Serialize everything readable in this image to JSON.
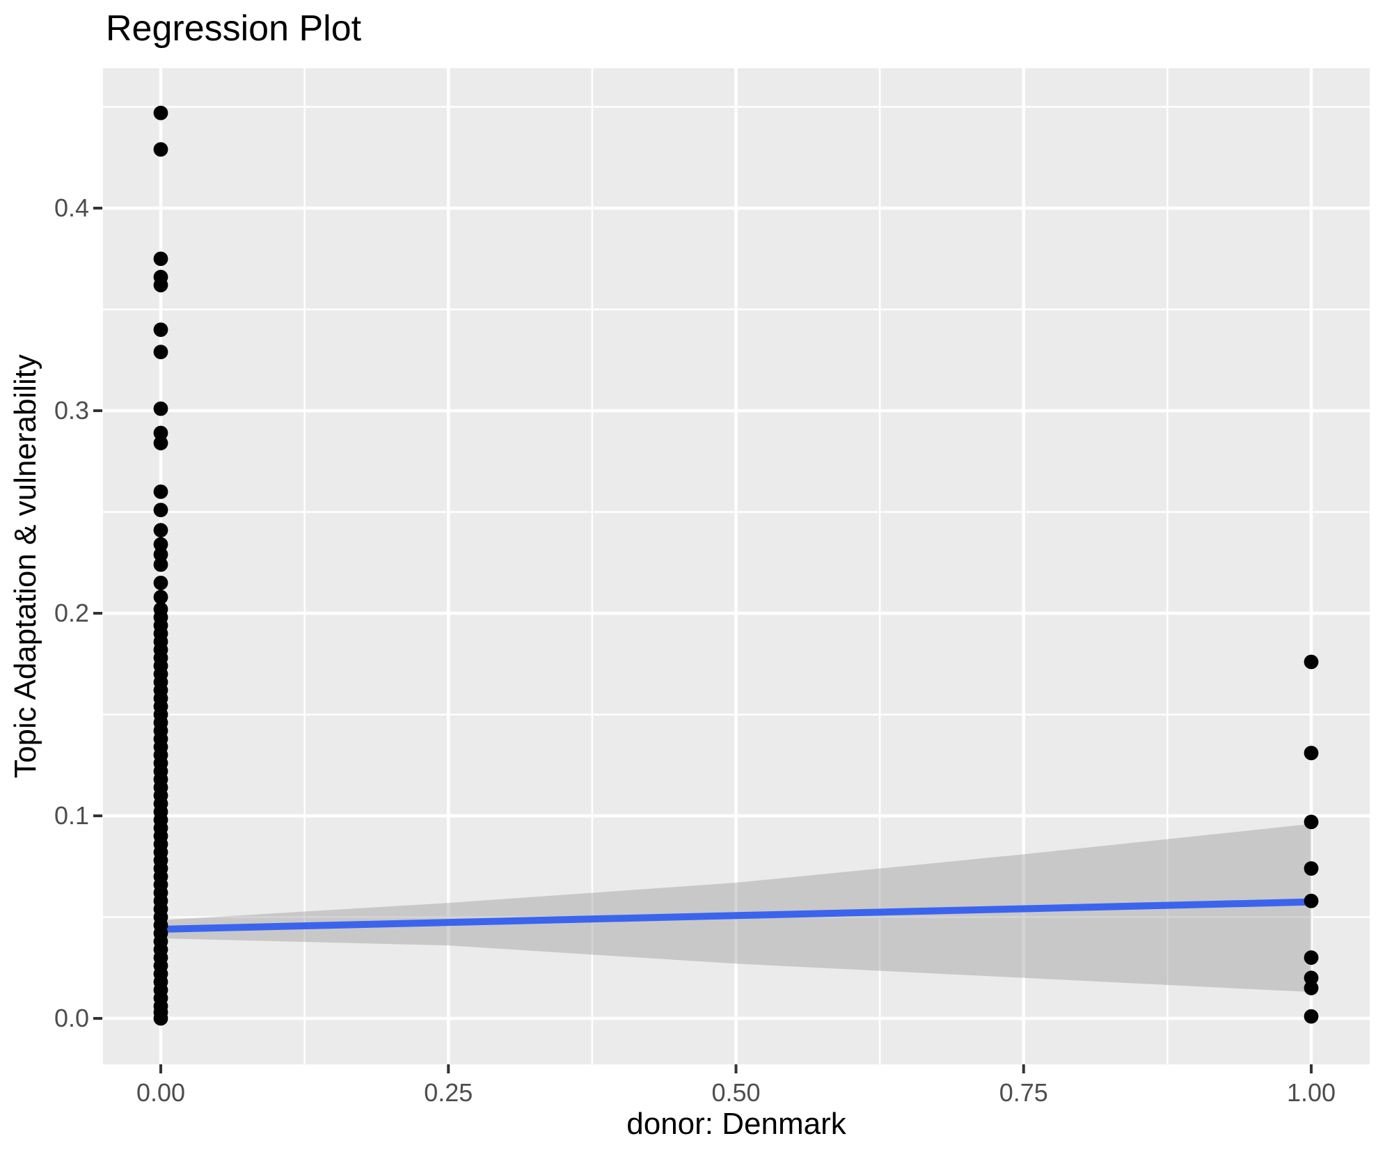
{
  "title": "Regression Plot",
  "chart_data": {
    "type": "scatter",
    "title": "Regression Plot",
    "xlabel": "donor: Denmark",
    "ylabel": "Topic Adaptation & vulnerability",
    "xlim": [
      -0.05,
      1.05
    ],
    "ylim": [
      -0.023,
      0.469
    ],
    "grid": "major-and-minor, white on grey panel",
    "legend": "none",
    "x_tick_values": [
      0,
      0.25,
      0.5,
      0.75,
      1.0
    ],
    "x_tick_labels": [
      "0.00",
      "0.25",
      "0.50",
      "0.75",
      "1.00"
    ],
    "y_tick_values": [
      0,
      0.1,
      0.2,
      0.3,
      0.4
    ],
    "y_tick_labels": [
      "0.0",
      "0.1",
      "0.2",
      "0.3",
      "0.4"
    ],
    "series": [
      {
        "name": "observations at donor=0",
        "x": 0,
        "y": [
          0.447,
          0.429,
          0.375,
          0.366,
          0.362,
          0.34,
          0.329,
          0.301,
          0.289,
          0.284,
          0.26,
          0.251,
          0.241,
          0.234,
          0.229,
          0.224,
          0.215,
          0.208,
          0.202,
          0.198,
          0.194,
          0.19,
          0.186,
          0.182,
          0.178,
          0.174,
          0.17,
          0.166,
          0.162,
          0.158,
          0.154,
          0.15,
          0.146,
          0.142,
          0.138,
          0.134,
          0.13,
          0.126,
          0.122,
          0.118,
          0.114,
          0.11,
          0.106,
          0.102,
          0.098,
          0.094,
          0.09,
          0.086,
          0.082,
          0.078,
          0.074,
          0.07,
          0.066,
          0.062,
          0.058,
          0.054,
          0.05,
          0.046,
          0.042,
          0.038,
          0.034,
          0.03,
          0.026,
          0.022,
          0.018,
          0.014,
          0.01,
          0.006,
          0.003,
          0.0
        ]
      },
      {
        "name": "observations at donor=1",
        "x": 1,
        "y": [
          0.176,
          0.131,
          0.097,
          0.074,
          0.058,
          0.03,
          0.02,
          0.015,
          0.001
        ]
      }
    ],
    "regression_line": {
      "x": [
        0,
        1
      ],
      "y": [
        0.044,
        0.0575
      ]
    },
    "confidence_band": {
      "x": [
        0,
        0.25,
        0.5,
        0.75,
        1.0
      ],
      "upper": [
        0.0485,
        0.057,
        0.067,
        0.081,
        0.096
      ],
      "lower": [
        0.0395,
        0.036,
        0.027,
        0.02,
        0.013
      ]
    },
    "colors": {
      "panel_bg": "#EBEBEB",
      "grid": "#FFFFFF",
      "point": "#000000",
      "line": "#3B64EE",
      "band": "rgba(153,153,153,0.42)",
      "tick_label": "#4D4D4D",
      "tick_mark": "#333333",
      "title": "#000000"
    }
  }
}
